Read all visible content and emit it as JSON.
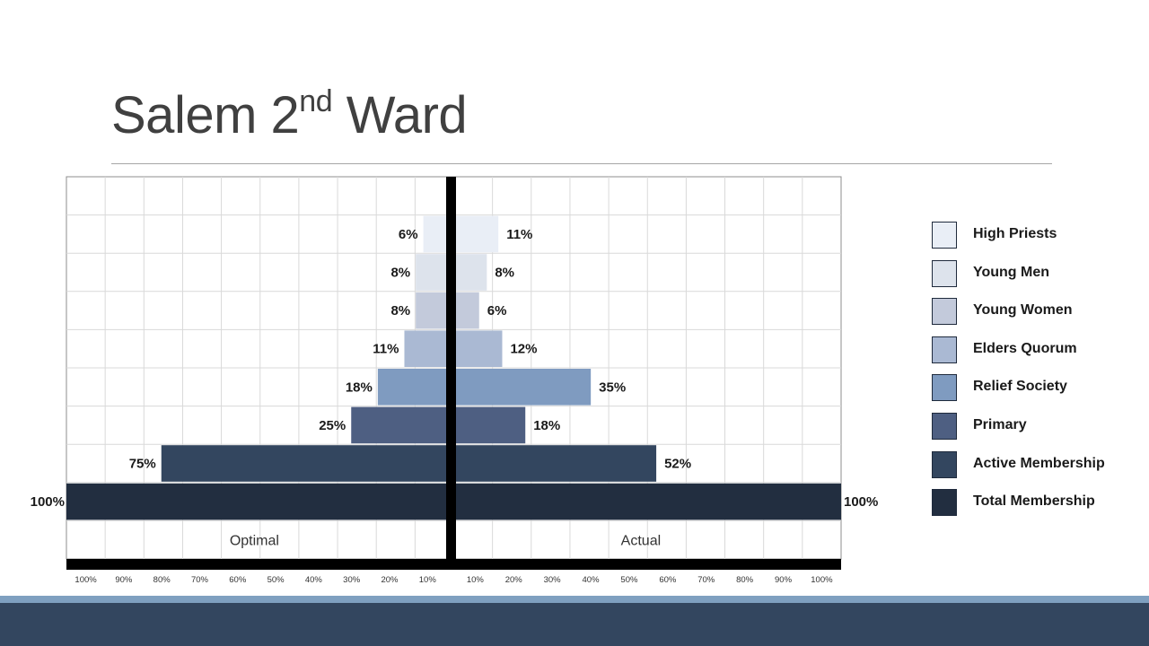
{
  "title": {
    "main": "Salem 2",
    "sup": "nd",
    "rest": " Ward"
  },
  "chart_data": {
    "type": "bar",
    "orientation": "horizontal",
    "layout": "population-pyramid",
    "categories": [
      "High Priests",
      "Young Men",
      "Young Women",
      "Elders Quorum",
      "Relief Society",
      "Primary",
      "Active Membership",
      "Total Membership"
    ],
    "series": [
      {
        "name": "Optimal",
        "side": "left",
        "values": [
          6,
          8,
          8,
          11,
          18,
          25,
          75,
          100
        ],
        "labels": [
          "6%",
          "8%",
          "8%",
          "11%",
          "18%",
          "25%",
          "75%",
          "100%"
        ]
      },
      {
        "name": "Actual",
        "side": "right",
        "values": [
          11,
          8,
          6,
          12,
          35,
          18,
          52,
          100
        ],
        "labels": [
          "11%",
          "8%",
          "6%",
          "12%",
          "35%",
          "18%",
          "52%",
          "100%"
        ]
      }
    ],
    "colors": [
      "#e9eef6",
      "#dde3ec",
      "#c3cadb",
      "#aab9d3",
      "#7f9bc0",
      "#4e5f82",
      "#33465f",
      "#222e40"
    ],
    "x_ticks_left": [
      "100%",
      "90%",
      "80%",
      "70%",
      "60%",
      "50%",
      "40%",
      "30%",
      "20%",
      "10%"
    ],
    "x_ticks_right": [
      "10%",
      "20%",
      "30%",
      "40%",
      "50%",
      "60%",
      "70%",
      "80%",
      "90%",
      "100%"
    ],
    "xlim": [
      0,
      100
    ],
    "side_labels": [
      "Optimal",
      "Actual"
    ],
    "grid": true,
    "legend_position": "right"
  },
  "legend": {
    "items": [
      {
        "label": "High Priests",
        "color": "#e9eef6"
      },
      {
        "label": "Young Men",
        "color": "#dde3ec"
      },
      {
        "label": "Young Women",
        "color": "#c3cadb"
      },
      {
        "label": "Elders Quorum",
        "color": "#aab9d3"
      },
      {
        "label": "Relief Society",
        "color": "#7f9bc0"
      },
      {
        "label": "Primary",
        "color": "#4e5f82"
      },
      {
        "label": "Active Membership",
        "color": "#33465f"
      },
      {
        "label": "Total Membership",
        "color": "#222e40"
      }
    ]
  }
}
